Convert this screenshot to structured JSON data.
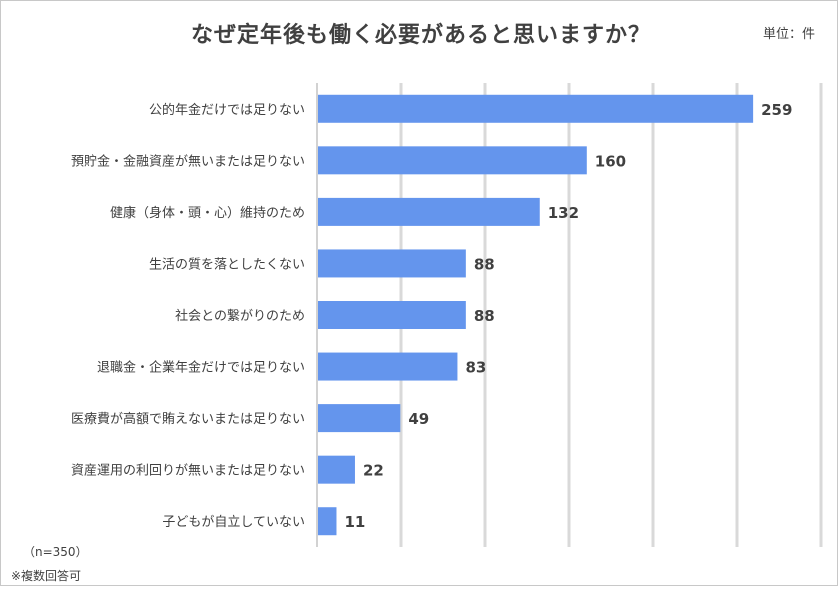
{
  "title": "なぜ定年後も働く必要があると思いますか？",
  "unit": "単位：件",
  "notes": {
    "n": "（n=350）",
    "multi": "※複数回答可"
  },
  "colors": {
    "bar": "#6495ED",
    "grid": "#d9d9d9",
    "axis": "#a6a6a6"
  },
  "chart_data": {
    "type": "bar",
    "orientation": "horizontal",
    "categories": [
      "公的年金だけでは足りない",
      "預貯金・金融資産が無いまたは足りない",
      "健康（身体・頭・心）維持のため",
      "生活の質を落としたくない",
      "社会との繋がりのため",
      "退職金・企業年金だけでは足りない",
      "医療費が高額で賄えないまたは足りない",
      "資産運用の利回りが無いまたは足りない",
      "子どもが自立していない"
    ],
    "values": [
      259,
      160,
      132,
      88,
      88,
      83,
      49,
      22,
      11
    ],
    "xlim": [
      0,
      300
    ],
    "grid": true,
    "data_labels": true
  }
}
